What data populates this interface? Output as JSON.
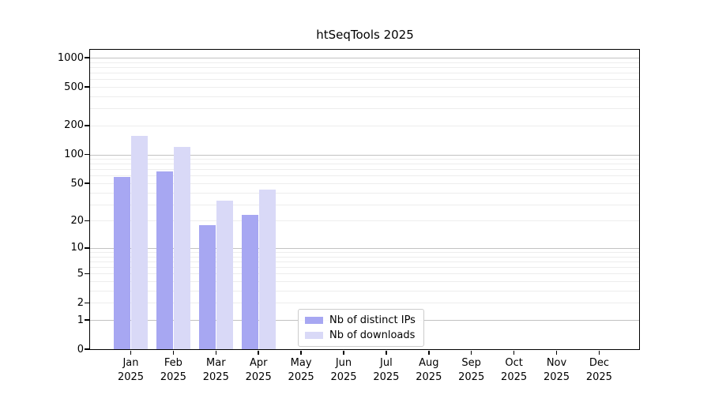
{
  "chart_data": {
    "type": "bar",
    "title": "htSeqTools 2025",
    "categories": [
      "Jan",
      "Feb",
      "Mar",
      "Apr",
      "May",
      "Jun",
      "Jul",
      "Aug",
      "Sep",
      "Oct",
      "Nov",
      "Dec"
    ],
    "category_year_label": "2025",
    "series": [
      {
        "name": "Nb of distinct IPs",
        "color": "#a7a7f2",
        "values": [
          58,
          66,
          18,
          23,
          0,
          0,
          0,
          0,
          0,
          0,
          0,
          0
        ]
      },
      {
        "name": "Nb of downloads",
        "color": "#d9d9f7",
        "values": [
          155,
          120,
          33,
          43,
          0,
          0,
          0,
          0,
          0,
          0,
          0,
          0
        ]
      }
    ],
    "xlabel": "",
    "ylabel": "",
    "yscale": "log1p",
    "ylim": [
      0,
      1000
    ],
    "y_ticks": [
      0,
      1,
      2,
      5,
      10,
      20,
      50,
      100,
      200,
      500,
      1000
    ],
    "grid": "on",
    "grid_major_values": [
      1,
      10,
      100,
      1000
    ],
    "legend_position": "lower-center-inside",
    "colors": {
      "axis": "#000000",
      "major_grid": "#c2c2c2",
      "minor_grid": "#ededed",
      "text": "#000000",
      "background": "#ffffff"
    }
  }
}
